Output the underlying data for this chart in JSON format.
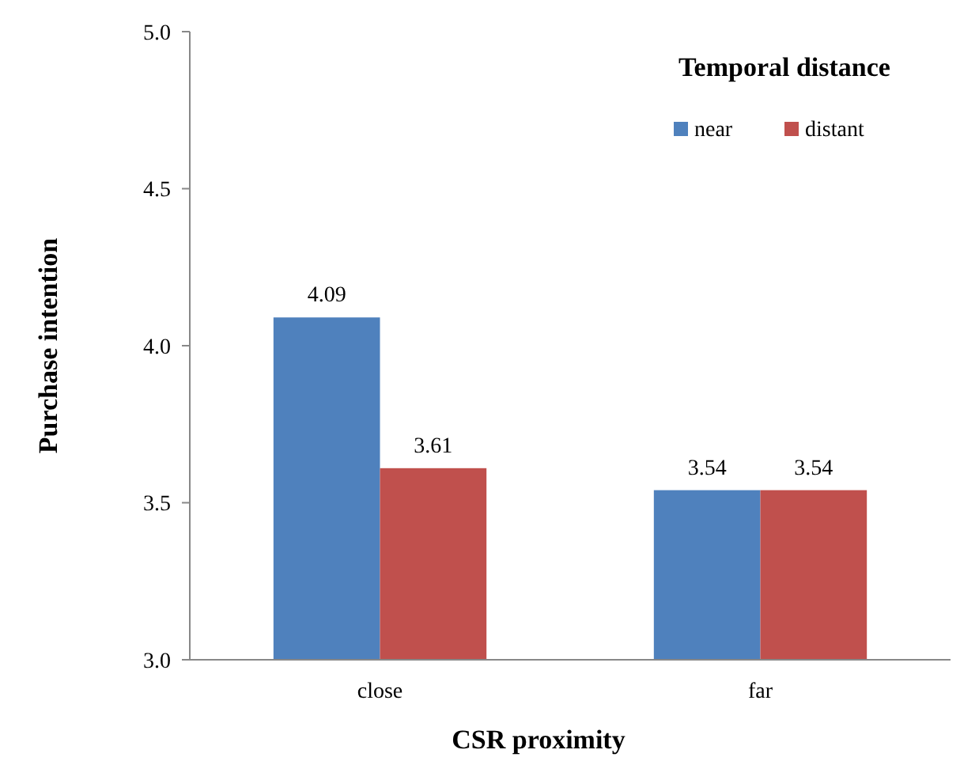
{
  "chart_data": {
    "type": "bar",
    "xlabel": "CSR proximity",
    "ylabel": "Purchase intention",
    "legend_title": "Temporal distance",
    "categories": [
      "close",
      "far"
    ],
    "series": [
      {
        "name": "near",
        "color": "#4f81bd",
        "values": [
          4.09,
          3.54
        ]
      },
      {
        "name": "distant",
        "color": "#c0504d",
        "values": [
          3.61,
          3.54
        ]
      }
    ],
    "ylim": [
      3.0,
      5.0
    ],
    "yticks": [
      {
        "value": 3.0,
        "label": "3.0"
      },
      {
        "value": 3.5,
        "label": "3.5"
      },
      {
        "value": 4.0,
        "label": "4.0"
      },
      {
        "value": 4.5,
        "label": "4.5"
      },
      {
        "value": 5.0,
        "label": "5.0"
      }
    ],
    "data_labels": true,
    "legend": "top right",
    "grid": false
  }
}
